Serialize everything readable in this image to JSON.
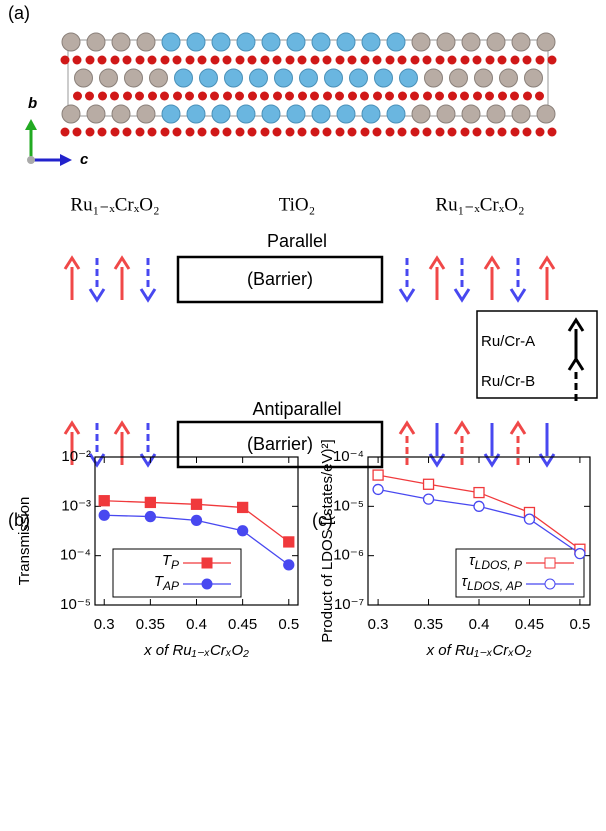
{
  "panel_labels": [
    "(a)",
    "(b)",
    "(c)"
  ],
  "structure": {
    "axis_b": "b",
    "axis_c": "c",
    "regions": [
      "Ru₁₋ₓCrₓO₂",
      "TiO₂",
      "Ru₁₋ₓCrₓO₂"
    ]
  },
  "configurations": [
    {
      "title": "Parallel",
      "barrier": "(Barrier)"
    },
    {
      "title": "Antiparallel",
      "barrier": "(Barrier)"
    }
  ],
  "spin_legend": [
    "Ru/Cr-A",
    "Ru/Cr-B"
  ],
  "chart_data": [
    {
      "type": "line",
      "ylabel": "Transmission",
      "xlabel": "x of Ru₁₋ₓCrₓO₂",
      "log_y": true,
      "legend": "lower left",
      "xlim": [
        0.29,
        0.51
      ],
      "xticks": [
        0.3,
        0.35,
        0.4,
        0.45,
        0.5
      ],
      "ylim": [
        1e-05,
        0.01
      ],
      "yticks": [
        {
          "value": 1e-05,
          "label": "10⁻⁵"
        },
        {
          "value": 0.0001,
          "label": "10⁻⁴"
        },
        {
          "value": 0.001,
          "label": "10⁻³"
        },
        {
          "value": 0.01,
          "label": "10⁻²"
        }
      ],
      "x": [
        0.3,
        0.35,
        0.4,
        0.45,
        0.5
      ],
      "series": [
        {
          "name": "TP",
          "color": "#f0393c",
          "marker": "square",
          "open": false,
          "values": [
            0.0013,
            0.0012,
            0.0011,
            0.00095,
            0.00019
          ]
        },
        {
          "name": "TAP",
          "color": "#4848f0",
          "marker": "circle",
          "open": false,
          "values": [
            0.00066,
            0.00062,
            0.00052,
            0.00032,
            6.5e-05
          ]
        }
      ]
    },
    {
      "type": "line",
      "ylabel": "Product of LDOS [(states/eV)²]",
      "xlabel": "x of Ru₁₋ₓCrₓO₂",
      "log_y": true,
      "legend": "lower right",
      "xlim": [
        0.29,
        0.51
      ],
      "xticks": [
        0.3,
        0.35,
        0.4,
        0.45,
        0.5
      ],
      "ylim": [
        1e-07,
        0.0001
      ],
      "yticks": [
        {
          "value": 1e-07,
          "label": "10⁻⁷"
        },
        {
          "value": 1e-06,
          "label": "10⁻⁶"
        },
        {
          "value": 1e-05,
          "label": "10⁻⁵"
        },
        {
          "value": 0.0001,
          "label": "10⁻⁴"
        }
      ],
      "x": [
        0.3,
        0.35,
        0.4,
        0.45,
        0.5
      ],
      "series": [
        {
          "name": "τLDOS, P",
          "color": "#f0393c",
          "marker": "square",
          "open": true,
          "values": [
            4.3e-05,
            2.8e-05,
            1.9e-05,
            7.5e-06,
            1.35e-06
          ]
        },
        {
          "name": "τLDOS, AP",
          "color": "#4848f0",
          "marker": "circle",
          "open": true,
          "values": [
            2.2e-05,
            1.4e-05,
            1e-05,
            5.5e-06,
            1.1e-06
          ]
        }
      ]
    }
  ]
}
